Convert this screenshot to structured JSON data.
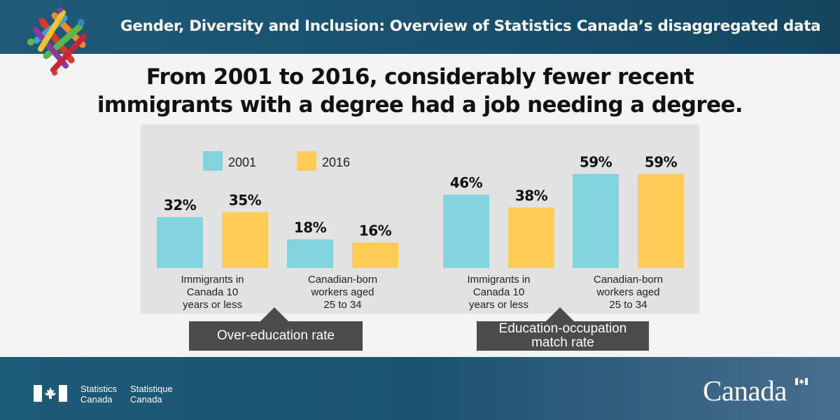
{
  "header": {
    "title": "Gender, Diversity and Inclusion: Overview of Statistics Canada’s disaggregated data"
  },
  "headline": {
    "line1": "From 2001 to 2016, considerably fewer recent",
    "line2": "immigrants with a degree had a job needing a degree."
  },
  "legend": [
    {
      "label": "2001",
      "color": "#82d4de"
    },
    {
      "label": "2016",
      "color": "#ffcc55"
    }
  ],
  "chart_data": [
    {
      "type": "bar",
      "title": "Over-education rate",
      "categories": [
        "Immigrants in Canada 10 years or less",
        "Canadian-born workers aged 25 to 34"
      ],
      "category_lines": [
        [
          "Immigrants in",
          "Canada 10",
          "years or less"
        ],
        [
          "Canadian-born",
          "workers aged",
          "25 to 34"
        ]
      ],
      "series": [
        {
          "name": "2001",
          "values": [
            32,
            18
          ],
          "labels": [
            "32%",
            "18%"
          ]
        },
        {
          "name": "2016",
          "values": [
            35,
            16
          ],
          "labels": [
            "35%",
            "16%"
          ]
        }
      ],
      "ylim": [
        0,
        100
      ],
      "legend_position": "top-left"
    },
    {
      "type": "bar",
      "title": "Education-occupation match rate",
      "categories": [
        "Immigrants in Canada 10 years or less",
        "Canadian-born workers aged 25 to 34"
      ],
      "category_lines": [
        [
          "Immigrants in",
          "Canada 10",
          "years or less"
        ],
        [
          "Canadian-born",
          "workers aged",
          "25 to 34"
        ]
      ],
      "series": [
        {
          "name": "2001",
          "values": [
            46,
            59
          ],
          "labels": [
            "46%",
            "59%"
          ]
        },
        {
          "name": "2016",
          "values": [
            38,
            59
          ],
          "labels": [
            "38%",
            "59%"
          ]
        }
      ],
      "ylim": [
        0,
        100
      ]
    }
  ],
  "group_boxes": {
    "left_line1": "Over-education rate",
    "right_line1": "Education-occupation",
    "right_line2": "match rate"
  },
  "footer": {
    "fip_en_line1": "Statistics",
    "fip_en_line2": "Canada",
    "fip_fr_line1": "Statistique",
    "fip_fr_line2": "Canada",
    "wordmark": "Canada"
  },
  "colors": {
    "bar_2001": "#82d4de",
    "bar_2016": "#ffcc55",
    "header_bg": "#1f5a78",
    "box_bg": "#4b4b4b"
  },
  "icons": [
    "statcan-diversity-logo",
    "canada-flag-icon"
  ]
}
